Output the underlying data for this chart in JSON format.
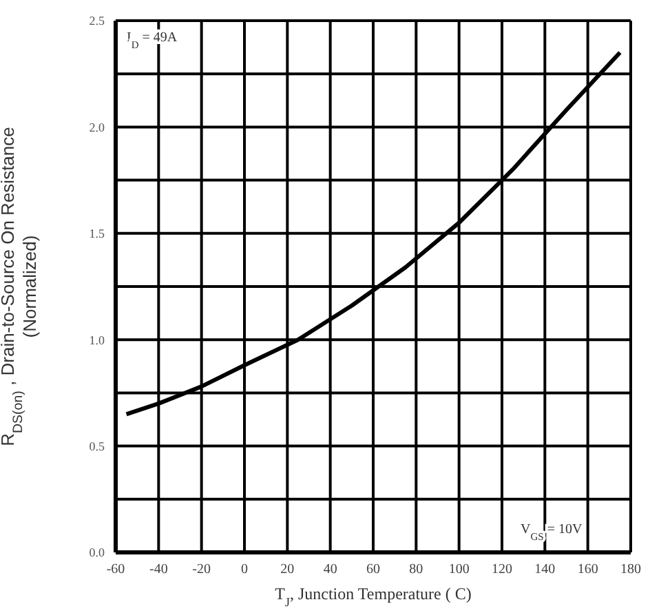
{
  "chart_data": {
    "type": "line",
    "xlabel": "T$_{J}$, Junction Temperature ( C)",
    "ylabel": "R$_{DS(on)}$ , Drain-to-Source On Resistance (Normalized)",
    "annotations": [
      "I$_{D}$ = 49A",
      "V$_{GS}$ = 10V"
    ],
    "x": [
      -55,
      -40,
      -20,
      0,
      25,
      50,
      75,
      100,
      125,
      150,
      175
    ],
    "series": [
      {
        "color": "#000000",
        "values": [
          0.65,
          0.7,
          0.78,
          0.88,
          1.0,
          1.16,
          1.34,
          1.55,
          1.8,
          2.08,
          2.35
        ]
      }
    ],
    "xlim": [
      -60,
      180
    ],
    "xticks": [
      -60,
      -40,
      -20,
      0,
      20,
      40,
      60,
      80,
      100,
      120,
      140,
      160,
      180
    ],
    "ylim": [
      0,
      2.5
    ],
    "yticks": [
      {
        "value": 0,
        "label": "0.0"
      },
      {
        "value": 0.25,
        "label": null
      },
      {
        "value": 0.5,
        "label": "0.5"
      },
      {
        "value": 0.75,
        "label": null
      },
      {
        "value": 1,
        "label": "1.0"
      },
      {
        "value": 1.25,
        "label": null
      },
      {
        "value": 1.5,
        "label": "1.5"
      },
      {
        "value": 1.75,
        "label": null
      },
      {
        "value": 2,
        "label": "2.0"
      },
      {
        "value": 2.25,
        "label": null
      },
      {
        "value": 2.5,
        "label": "2.5"
      }
    ],
    "grid": true,
    "marker": "none",
    "line_style": "solid"
  }
}
